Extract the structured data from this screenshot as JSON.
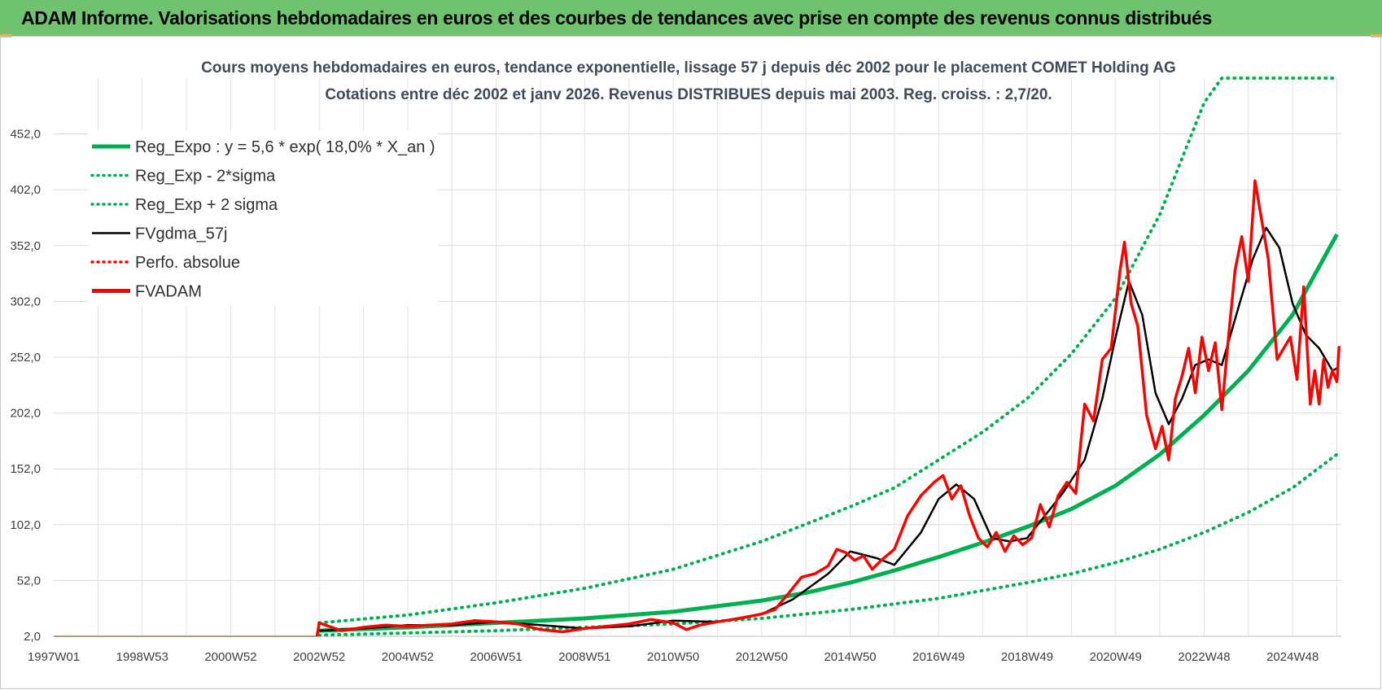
{
  "header": {
    "title": "ADAM Informe. Valorisations hebdomadaires en euros et des courbes de tendances avec prise en compte des revenus connus distribués"
  },
  "colors": {
    "banner": "#6fc36f",
    "reg_expo": "#00b050",
    "fvgdma": "#000000",
    "fvadam": "#ff0000",
    "perfo": "#ff0000"
  },
  "chart_data": {
    "type": "line",
    "title_line1": "Cours moyens hebdomadaires en euros, tendance exponentielle, lissage 57 j depuis déc 2002 pour le placement COMET Holding AG",
    "title_line2": "Cotations entre déc 2002 et janv 2026. Revenus DISTRIBUES depuis mai 2003. Reg. croiss. : 2,7/20.",
    "ylim": [
      2,
      502
    ],
    "y_ticks": [
      "452,0",
      "402,0",
      "352,0",
      "302,0",
      "252,0",
      "202,0",
      "152,0",
      "102,0",
      "52,0",
      "2,0"
    ],
    "y_tick_values": [
      452,
      402,
      352,
      302,
      252,
      202,
      152,
      102,
      52,
      2
    ],
    "x_ticks": [
      "1997W01",
      "1998W53",
      "2000W52",
      "2002W52",
      "2004W52",
      "2006W51",
      "2008W51",
      "2010W50",
      "2012W50",
      "2014W50",
      "2016W49",
      "2018W49",
      "2020W49",
      "2022W48",
      "2024W48"
    ],
    "x_tick_years": [
      1997.0,
      1999.0,
      2001.0,
      2003.0,
      2005.0,
      2007.0,
      2009.0,
      2011.0,
      2013.0,
      2015.0,
      2017.0,
      2019.0,
      2021.0,
      2023.0,
      2025.0
    ],
    "xlim": [
      1997.0,
      2026.1
    ],
    "legend": {
      "position": "top-left",
      "entries": [
        {
          "label": "Reg_Expo : y = 5,6 * exp( 18,0% *  X_an )",
          "style": "solid-thick",
          "color": "#00b050"
        },
        {
          "label": "Reg_Exp - 2*sigma",
          "style": "dotted",
          "color": "#00b050"
        },
        {
          "label": "Reg_Exp + 2 sigma",
          "style": "dotted",
          "color": "#00b050"
        },
        {
          "label": "FVgdma_57j",
          "style": "solid",
          "color": "#000000"
        },
        {
          "label": "Perfo. absolue",
          "style": "dotted",
          "color": "#ff0000"
        },
        {
          "label": "FVADAM",
          "style": "solid-thick",
          "color": "#ff0000"
        }
      ]
    },
    "series": [
      {
        "name": "Reg_Expo : y = 5,6 * exp( 18,0% *  X_an )",
        "x": [
          2003.0,
          2005.0,
          2007.0,
          2009.0,
          2011.0,
          2013.0,
          2014.0,
          2015.0,
          2016.0,
          2017.0,
          2018.0,
          2019.0,
          2020.0,
          2021.0,
          2022.0,
          2023.0,
          2024.0,
          2025.0,
          2026.0
        ],
        "y": [
          7,
          10,
          14,
          18,
          24,
          34,
          41,
          50,
          61,
          73,
          86,
          100,
          116,
          137,
          165,
          200,
          240,
          290,
          362
        ]
      },
      {
        "name": "Reg_Exp - 2*sigma",
        "x": [
          2003.0,
          2005.0,
          2007.0,
          2009.0,
          2011.0,
          2013.0,
          2015.0,
          2017.0,
          2019.0,
          2020.0,
          2021.0,
          2022.0,
          2023.0,
          2024.0,
          2025.0,
          2026.0
        ],
        "y": [
          3,
          5,
          7,
          10,
          13,
          18,
          26,
          36,
          50,
          58,
          68,
          80,
          95,
          113,
          135,
          165
        ]
      },
      {
        "name": "Reg_Exp + 2 sigma",
        "x": [
          2003.0,
          2005.0,
          2007.0,
          2009.0,
          2011.0,
          2013.0,
          2015.0,
          2016.0,
          2017.0,
          2018.0,
          2019.0,
          2020.0,
          2021.0,
          2022.0,
          2022.5,
          2023.0,
          2023.4,
          2024.0,
          2025.0,
          2026.0
        ],
        "y": [
          14,
          21,
          32,
          45,
          62,
          87,
          118,
          135,
          160,
          185,
          215,
          255,
          305,
          380,
          430,
          480,
          502,
          502,
          502,
          502
        ]
      },
      {
        "name": "FVgdma_57j",
        "x": [
          2003.0,
          2004.0,
          2005.0,
          2006.0,
          2007.0,
          2008.0,
          2009.0,
          2010.0,
          2011.0,
          2012.0,
          2013.0,
          2013.7,
          2014.5,
          2015.0,
          2015.6,
          2016.0,
          2016.6,
          2017.0,
          2017.4,
          2017.8,
          2018.2,
          2018.6,
          2019.0,
          2019.4,
          2019.8,
          2020.3,
          2020.7,
          2021.0,
          2021.3,
          2021.6,
          2021.9,
          2022.2,
          2022.5,
          2022.8,
          2023.1,
          2023.4,
          2023.8,
          2024.1,
          2024.4,
          2024.7,
          2025.0,
          2025.3,
          2025.6,
          2025.9,
          2026.0
        ],
        "y": [
          7,
          9,
          12,
          12,
          15,
          12,
          9,
          11,
          16,
          15,
          22,
          35,
          58,
          78,
          72,
          66,
          95,
          125,
          138,
          125,
          90,
          87,
          90,
          110,
          130,
          160,
          215,
          270,
          320,
          290,
          220,
          192,
          215,
          245,
          250,
          245,
          300,
          340,
          368,
          350,
          300,
          272,
          260,
          240,
          242
        ]
      },
      {
        "name": "FVADAM",
        "x": [
          2002.95,
          2003.0,
          2003.5,
          2004.0,
          2004.5,
          2005.0,
          2005.5,
          2006.0,
          2006.5,
          2007.0,
          2007.5,
          2008.0,
          2008.5,
          2009.0,
          2009.5,
          2010.0,
          2010.5,
          2011.0,
          2011.3,
          2011.6,
          2012.0,
          2012.5,
          2013.0,
          2013.3,
          2013.6,
          2013.9,
          2014.2,
          2014.5,
          2014.7,
          2014.9,
          2015.1,
          2015.3,
          2015.5,
          2015.7,
          2016.0,
          2016.3,
          2016.6,
          2016.9,
          2017.1,
          2017.3,
          2017.5,
          2017.7,
          2017.9,
          2018.1,
          2018.3,
          2018.5,
          2018.7,
          2018.9,
          2019.1,
          2019.3,
          2019.5,
          2019.7,
          2019.9,
          2020.1,
          2020.3,
          2020.5,
          2020.7,
          2020.9,
          2021.1,
          2021.2,
          2021.35,
          2021.5,
          2021.7,
          2021.9,
          2022.05,
          2022.2,
          2022.35,
          2022.5,
          2022.65,
          2022.8,
          2022.95,
          2023.1,
          2023.25,
          2023.4,
          2023.55,
          2023.7,
          2023.85,
          2024.0,
          2024.15,
          2024.3,
          2024.45,
          2024.55,
          2024.65,
          2024.8,
          2024.95,
          2025.1,
          2025.25,
          2025.4,
          2025.5,
          2025.6,
          2025.7,
          2025.8,
          2025.9,
          2026.0,
          2026.05
        ],
        "y": [
          2,
          14,
          7,
          10,
          12,
          11,
          12,
          13,
          16,
          15,
          13,
          8,
          6,
          9,
          11,
          13,
          17,
          14,
          8,
          12,
          15,
          18,
          22,
          26,
          40,
          55,
          58,
          65,
          80,
          77,
          70,
          74,
          62,
          70,
          80,
          110,
          128,
          140,
          146,
          125,
          137,
          110,
          90,
          82,
          95,
          78,
          92,
          84,
          90,
          120,
          100,
          128,
          140,
          130,
          210,
          195,
          250,
          260,
          330,
          355,
          300,
          280,
          200,
          170,
          190,
          160,
          215,
          235,
          260,
          220,
          270,
          240,
          265,
          205,
          270,
          330,
          360,
          320,
          410,
          375,
          340,
          295,
          250,
          260,
          270,
          232,
          315,
          210,
          240,
          210,
          250,
          225,
          240,
          230,
          262
        ]
      }
    ]
  }
}
